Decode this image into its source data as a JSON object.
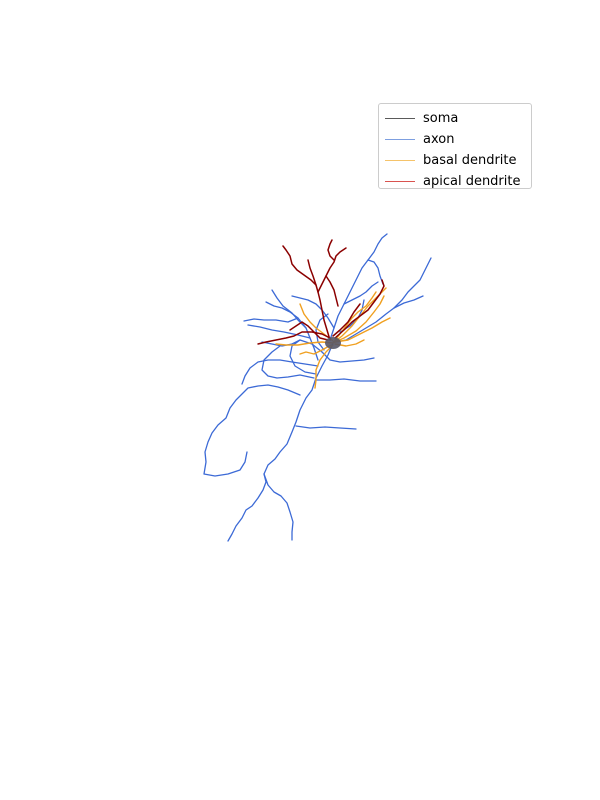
{
  "legend": {
    "items": [
      {
        "label": "soma",
        "color": "#5a5a5a"
      },
      {
        "label": "axon",
        "color": "#7d9fe0"
      },
      {
        "label": "basal dendrite",
        "color": "#f5c36a"
      },
      {
        "label": "apical dendrite",
        "color": "#d9534f"
      }
    ]
  },
  "colors": {
    "soma": "#555566",
    "axon": "#3c6ad6",
    "basal_dendrite": "#f0a020",
    "apical_dendrite": "#8b0000"
  }
}
